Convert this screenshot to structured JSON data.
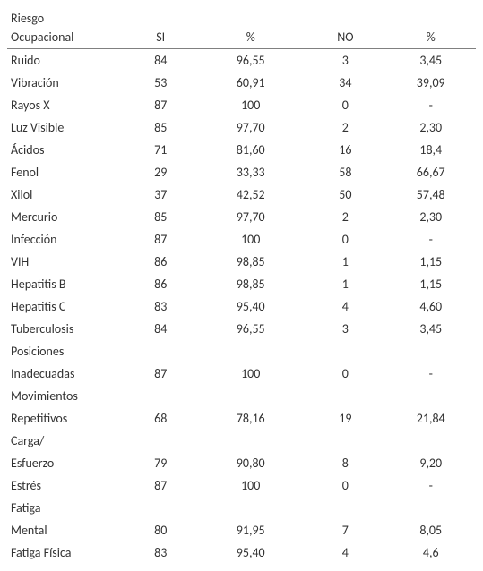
{
  "table": {
    "header": {
      "label_line1": "Riesgo",
      "label_line2": "Ocupacional",
      "si": "SI",
      "pct1": "%",
      "no": "NO",
      "pct2": "%"
    },
    "rows": [
      {
        "label": "Ruido",
        "si": "84",
        "pct1": "96,55",
        "no": "3",
        "pct2": "3,45"
      },
      {
        "label": "Vibración",
        "si": "53",
        "pct1": "60,91",
        "no": "34",
        "pct2": "39,09"
      },
      {
        "label": "Rayos X",
        "si": "87",
        "pct1": "100",
        "no": "0",
        "pct2": "-"
      },
      {
        "label": "Luz Visible",
        "si": "85",
        "pct1": "97,70",
        "no": "2",
        "pct2": "2,30"
      },
      {
        "label": "Ácidos",
        "si": "71",
        "pct1": "81,60",
        "no": "16",
        "pct2": "18,4"
      },
      {
        "label": "Fenol",
        "si": "29",
        "pct1": "33,33",
        "no": "58",
        "pct2": "66,67"
      },
      {
        "label": "Xilol",
        "si": "37",
        "pct1": "42,52",
        "no": "50",
        "pct2": "57,48"
      },
      {
        "label": "Mercurio",
        "si": "85",
        "pct1": "97,70",
        "no": "2",
        "pct2": "2,30"
      },
      {
        "label": "Infección",
        "si": "87",
        "pct1": "100",
        "no": "0",
        "pct2": "-"
      },
      {
        "label": "VIH",
        "si": "86",
        "pct1": "98,85",
        "no": "1",
        "pct2": "1,15"
      },
      {
        "label": "Hepatitis B",
        "si": "86",
        "pct1": "98,85",
        "no": "1",
        "pct2": "1,15"
      },
      {
        "label": "Hepatitis C",
        "si": "83",
        "pct1": "95,40",
        "no": "4",
        "pct2": "4,60"
      },
      {
        "label": "Tuberculosis",
        "si": "84",
        "pct1": "96,55",
        "no": "3",
        "pct2": "3,45"
      },
      {
        "label": "Posiciones Inadecuadas",
        "si": "87",
        "pct1": "100",
        "no": "0",
        "pct2": "-",
        "multi": true
      },
      {
        "label": "Movimientos Repetitivos",
        "si": "68",
        "pct1": "78,16",
        "no": "19",
        "pct2": "21,84",
        "multi": true
      },
      {
        "label": "Carga/ Esfuerzo",
        "si": "79",
        "pct1": "90,80",
        "no": "8",
        "pct2": "9,20",
        "multi": true
      },
      {
        "label": "Estrés",
        "si": "87",
        "pct1": "100",
        "no": "0",
        "pct2": "-"
      },
      {
        "label": "Fatiga Mental",
        "si": "80",
        "pct1": "91,95",
        "no": "7",
        "pct2": "8,05",
        "multi": true
      },
      {
        "label": "Fatiga Física",
        "si": "83",
        "pct1": "95,40",
        "no": "4",
        "pct2": "4,6"
      }
    ],
    "colors": {
      "text": "#333333",
      "border": "#808080",
      "background": "#ffffff"
    },
    "font_size": 14
  }
}
